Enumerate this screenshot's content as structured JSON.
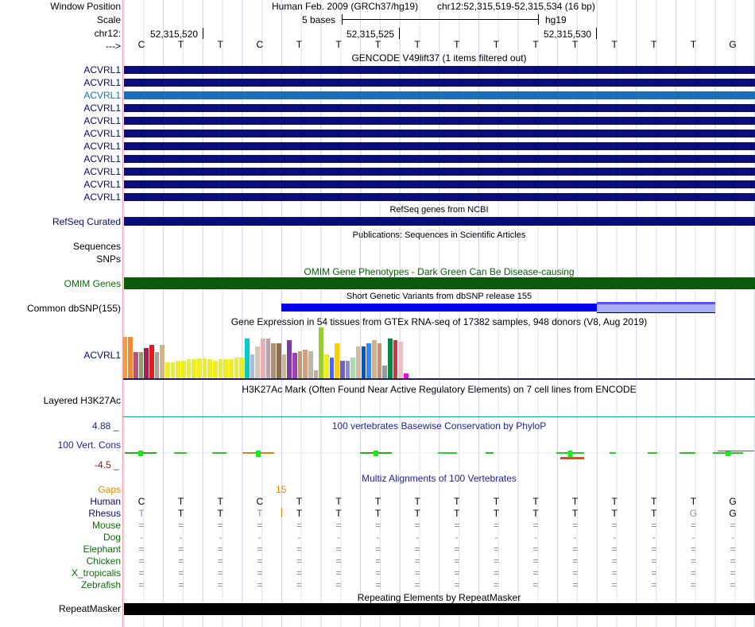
{
  "header": {
    "window_label": "Window Position",
    "assembly": "Human Feb. 2009 (GRCh37/hg19)",
    "position": "chr12:52,315,519-52,315,534 (16 bp)",
    "scale_label": "Scale",
    "scale_text": "5 bases",
    "genome_label": "hg19",
    "chrom_label": "chr12:",
    "direction_label": "--->",
    "coordinates": [
      "52,315,520",
      "52,315,525",
      "52,315,530"
    ]
  },
  "sequence": [
    "C",
    "T",
    "T",
    "C",
    "T",
    "T",
    "T",
    "T",
    "T",
    "T",
    "T",
    "T",
    "T",
    "T",
    "T",
    "G"
  ],
  "tracks": {
    "gencode": {
      "title": "GENCODE V49lift37 (1 items filtered out)",
      "items": [
        "ACVRL1",
        "ACVRL1",
        "ACVRL1",
        "ACVRL1",
        "ACVRL1",
        "ACVRL1",
        "ACVRL1",
        "ACVRL1",
        "ACVRL1",
        "ACVRL1",
        "ACVRL1"
      ],
      "highlight_index": 2,
      "color": "#0c0c78",
      "highlight_color": "#1a6fb5"
    },
    "refseq": {
      "title": "RefSeq genes from NCBI",
      "label": "RefSeq Curated",
      "color": "#0c0c78"
    },
    "publications": {
      "title": "Publications: Sequences in Scientific Articles",
      "label1": "Sequences",
      "label2": "SNPs"
    },
    "omim": {
      "title": "OMIM Gene Phenotypes - Dark Green Can Be Disease-causing",
      "label": "OMIM Genes",
      "color": "#0a5a0a"
    },
    "dbsnp": {
      "title": "Short Genetic Variants from dbSNP release 155",
      "label": "Common dbSNP(155)",
      "color": "#0000ee"
    },
    "gtex": {
      "title": "Gene Expression in 54 tissues from GTEx RNA-seq of 17382 samples, 948 donors (V8, Aug 2019)",
      "label": "ACVRL1",
      "values": [
        52,
        52,
        33,
        33,
        38,
        42,
        33,
        42,
        20,
        20,
        22,
        22,
        24,
        24,
        25,
        25,
        24,
        22,
        24,
        24,
        24,
        26,
        26,
        50,
        30,
        40,
        50,
        50,
        44,
        44,
        30,
        48,
        32,
        34,
        36,
        34,
        10,
        64,
        30,
        26,
        44,
        22,
        22,
        26,
        40,
        40,
        44,
        48,
        44,
        16,
        50,
        48,
        46,
        6
      ],
      "colors": [
        "#ff9a33",
        "#f08a2c",
        "#b0567a",
        "#999966",
        "#a02050",
        "#e01e1e",
        "#b0a090",
        "#d2b48c",
        "#eeee22",
        "#eeee22",
        "#eeee22",
        "#eeee22",
        "#eeee22",
        "#eeee22",
        "#eeee22",
        "#eeee22",
        "#eeee22",
        "#eeee22",
        "#eeee22",
        "#eeee22",
        "#eeee22",
        "#eeee22",
        "#eeee22",
        "#00cccc",
        "#a0c0e0",
        "#dcc5b8",
        "#e8b0b8",
        "#c0a0a0",
        "#b09070",
        "#8b6d50",
        "#d2b48c",
        "#7a3fa0",
        "#a040b0",
        "#cc9966",
        "#d0a080",
        "#bbb8a8",
        "#ccaa99",
        "#99cc33",
        "#eeee22",
        "#4466ff",
        "#ffcc00",
        "#7060c0",
        "#8888ee",
        "#aaddaa",
        "#ccbbaa",
        "#0055cc",
        "#3388ff",
        "#d2b48c",
        "#c89070",
        "#999999",
        "#008844",
        "#c83c3c",
        "#f0c0c8",
        "#ee00ee"
      ]
    },
    "h3k27ac": {
      "title": "H3K27Ac Mark (Often Found Near Active Regulatory Elements) on 7 cell lines from ENCODE",
      "label": "Layered H3K27Ac",
      "color": "#1a9a9a"
    },
    "phylop": {
      "title": "100 vertebrates Basewise Conservation by PhyloP",
      "label": "100 Vert. Cons",
      "max": "4.88 _",
      "min": "-4.5 _",
      "color": "#222299"
    },
    "multiz": {
      "title": "Multiz Alignments of 100 Vertebrates",
      "gaps_label": "Gaps",
      "gap_count": "15",
      "species": [
        "Human",
        "Rhesus",
        "Mouse",
        "Dog",
        "Elephant",
        "Chicken",
        "X_tropicalis",
        "Zebrafish"
      ],
      "rows": [
        [
          "C",
          "T",
          "T",
          "C",
          "T",
          "T",
          "T",
          "T",
          "T",
          "T",
          "T",
          "T",
          "T",
          "T",
          "T",
          "G"
        ],
        [
          "T",
          "T",
          "T",
          "T",
          "T",
          "T",
          "T",
          "T",
          "T",
          "T",
          "T",
          "T",
          "T",
          "T",
          "G",
          "G"
        ],
        [
          "=",
          "=",
          "=",
          "=",
          "=",
          "=",
          "=",
          "=",
          "=",
          "=",
          "=",
          "=",
          "=",
          "=",
          "=",
          "="
        ],
        [
          "-",
          "-",
          "-",
          "-",
          "-",
          "-",
          "-",
          "-",
          "-",
          "-",
          "-",
          "-",
          "-",
          "-",
          "-",
          "-"
        ],
        [
          "=",
          "=",
          "=",
          "=",
          "=",
          "=",
          "=",
          "=",
          "=",
          "=",
          "=",
          "=",
          "=",
          "=",
          "=",
          "="
        ],
        [
          "=",
          "=",
          "=",
          "=",
          "=",
          "=",
          "=",
          "=",
          "=",
          "=",
          "=",
          "=",
          "=",
          "=",
          "=",
          "="
        ],
        [
          "=",
          "=",
          "=",
          "=",
          "=",
          "=",
          "=",
          "=",
          "=",
          "=",
          "=",
          "=",
          "=",
          "=",
          "=",
          "="
        ],
        [
          "=",
          "=",
          "=",
          "=",
          "=",
          "=",
          "=",
          "=",
          "=",
          "=",
          "=",
          "=",
          "=",
          "=",
          "=",
          "="
        ]
      ]
    },
    "repeatmasker": {
      "title": "Repeating Elements by RepeatMasker",
      "label": "RepeatMasker",
      "color": "#000000"
    }
  }
}
